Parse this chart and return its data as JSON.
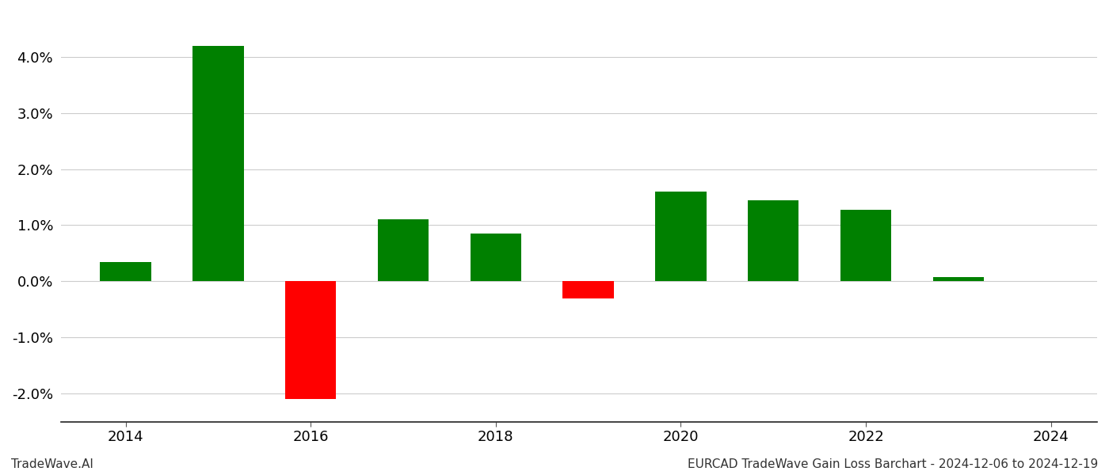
{
  "years": [
    2014,
    2015,
    2016,
    2017,
    2018,
    2019,
    2020,
    2021,
    2022,
    2023
  ],
  "values": [
    0.0035,
    0.042,
    -0.021,
    0.011,
    0.0085,
    -0.003,
    0.016,
    0.0145,
    0.0127,
    0.0008
  ],
  "colors": [
    "#008000",
    "#008000",
    "#ff0000",
    "#008000",
    "#008000",
    "#ff0000",
    "#008000",
    "#008000",
    "#008000",
    "#008000"
  ],
  "ylim": [
    -0.025,
    0.048
  ],
  "yticks": [
    -0.02,
    -0.01,
    0.0,
    0.01,
    0.02,
    0.03,
    0.04
  ],
  "xticks": [
    2014,
    2016,
    2018,
    2020,
    2022,
    2024
  ],
  "xlim": [
    2013.3,
    2024.5
  ],
  "footer_left": "TradeWave.AI",
  "footer_right": "EURCAD TradeWave Gain Loss Barchart - 2024-12-06 to 2024-12-19",
  "background_color": "#ffffff",
  "bar_width": 0.55,
  "grid_color": "#cccccc",
  "tick_fontsize": 13,
  "footer_fontsize": 11
}
